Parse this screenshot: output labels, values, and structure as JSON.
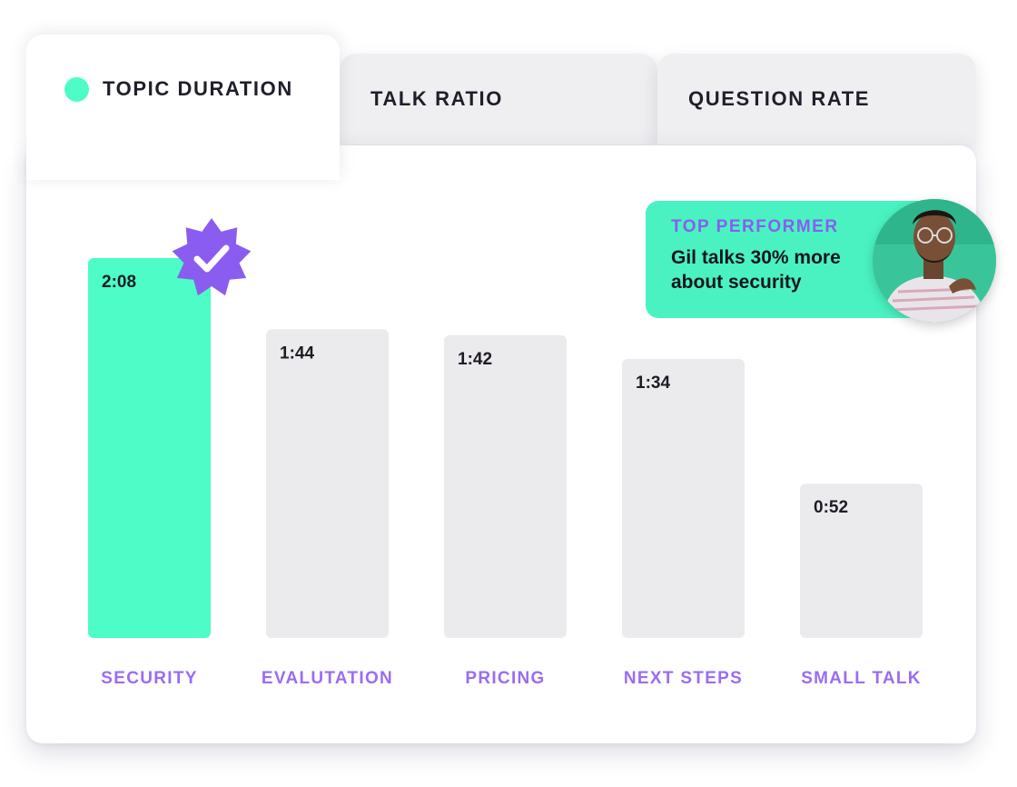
{
  "tabs": {
    "active": "Topic Duration",
    "topic_duration": "TOPIC DURATION",
    "talk_ratio": "TALK RATIO",
    "question_rate": "QUESTION RATE"
  },
  "callout": {
    "title": "TOP PERFORMER",
    "text": "Gil talks 30% more about security"
  },
  "colors": {
    "accent": "#4dfcc6",
    "purple": "#8a5cf0",
    "bar_inactive": "#ebebed",
    "text_dark": "#1f1f2b"
  },
  "icons": {
    "active_dot": "dot-icon",
    "badge": "verified-check-badge-icon",
    "avatar": "person-avatar"
  },
  "chart_data": {
    "type": "bar",
    "categories": [
      "SECURITY",
      "EVALUTATION",
      "PRICING",
      "NEXT STEPS",
      "SMALL TALK"
    ],
    "values": [
      128,
      104,
      102,
      94,
      52
    ],
    "value_labels": [
      "2:08",
      "1:44",
      "1:42",
      "1:34",
      "0:52"
    ],
    "highlighted": 0,
    "ylim": [
      0,
      128
    ],
    "grid": false,
    "title": "",
    "xlabel": "",
    "ylabel": ""
  }
}
